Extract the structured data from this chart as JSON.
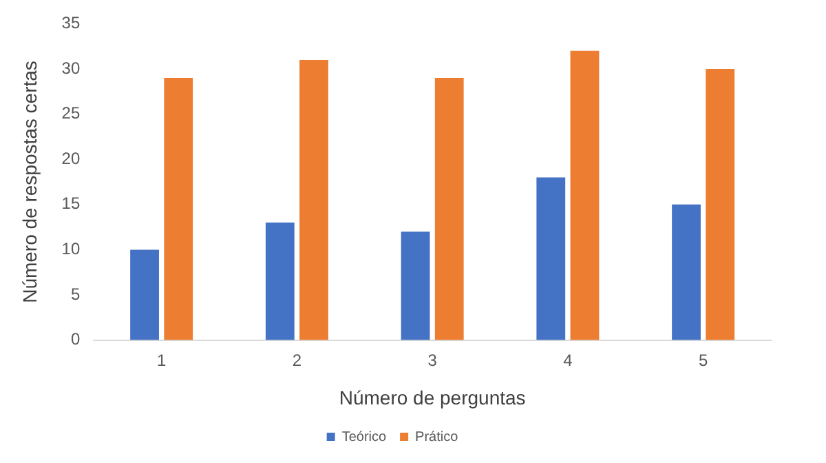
{
  "chart_data": {
    "type": "bar",
    "xlabel": "Número de perguntas",
    "ylabel": "Número de respostas certas",
    "categories": [
      "1",
      "2",
      "3",
      "4",
      "5"
    ],
    "series": [
      {
        "name": "Teórico",
        "color": "#4472c4",
        "values": [
          10,
          13,
          12,
          18,
          15
        ]
      },
      {
        "name": "Prático",
        "color": "#ed7d31",
        "values": [
          29,
          31,
          29,
          32,
          30
        ]
      }
    ],
    "ylim": [
      0,
      35
    ],
    "yticks": [
      0,
      5,
      10,
      15,
      20,
      25,
      30,
      35
    ],
    "grid": false,
    "legend": "bottom"
  }
}
